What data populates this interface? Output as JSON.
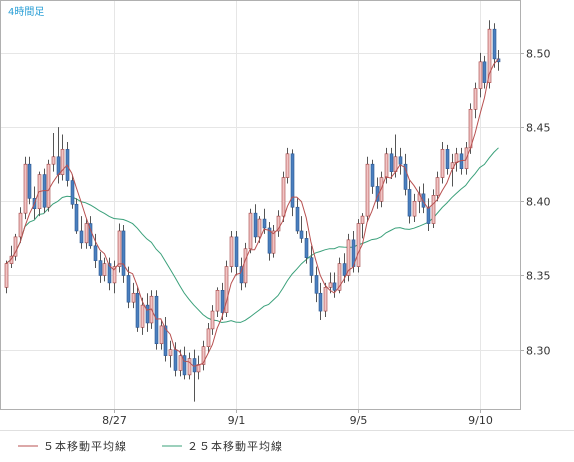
{
  "chart_data": {
    "type": "candlestick",
    "timeframe_label": "4時間足",
    "title": "",
    "xlabel": "",
    "ylabel": "",
    "ylim": [
      8.26,
      8.535
    ],
    "yticks": [
      8.3,
      8.35,
      8.4,
      8.45,
      8.5
    ],
    "ytick_labels": [
      "8.30",
      "8.35",
      "8.40",
      "8.45",
      "8.50"
    ],
    "xticks": [
      {
        "label": "8/27",
        "index": 23
      },
      {
        "label": "9/1",
        "index": 49
      },
      {
        "label": "9/5",
        "index": 75
      },
      {
        "label": "9/10",
        "index": 101
      }
    ],
    "grid": true,
    "up_color": "#f2c4c4",
    "up_edge": "#a04040",
    "down_color": "#4a7fbf",
    "down_edge": "#2a5590",
    "wick_color": "#555555",
    "candles": [
      [
        8.342,
        8.36,
        8.338,
        8.358
      ],
      [
        8.358,
        8.37,
        8.355,
        8.363
      ],
      [
        8.363,
        8.378,
        8.36,
        8.376
      ],
      [
        8.376,
        8.396,
        8.372,
        8.392
      ],
      [
        8.392,
        8.43,
        8.388,
        8.425
      ],
      [
        8.425,
        8.43,
        8.398,
        8.402
      ],
      [
        8.402,
        8.41,
        8.388,
        8.395
      ],
      [
        8.395,
        8.42,
        8.39,
        8.418
      ],
      [
        8.418,
        8.422,
        8.392,
        8.396
      ],
      [
        8.396,
        8.428,
        8.393,
        8.425
      ],
      [
        8.425,
        8.446,
        8.42,
        8.43
      ],
      [
        8.43,
        8.45,
        8.412,
        8.418
      ],
      [
        8.418,
        8.445,
        8.414,
        8.435
      ],
      [
        8.435,
        8.44,
        8.41,
        8.414
      ],
      [
        8.414,
        8.418,
        8.395,
        8.398
      ],
      [
        8.398,
        8.402,
        8.378,
        8.38
      ],
      [
        8.38,
        8.39,
        8.368,
        8.372
      ],
      [
        8.372,
        8.388,
        8.368,
        8.385
      ],
      [
        8.385,
        8.39,
        8.368,
        8.37
      ],
      [
        8.37,
        8.378,
        8.355,
        8.36
      ],
      [
        8.36,
        8.366,
        8.345,
        8.35
      ],
      [
        8.35,
        8.362,
        8.346,
        8.358
      ],
      [
        8.358,
        8.362,
        8.34,
        8.345
      ],
      [
        8.345,
        8.36,
        8.338,
        8.356
      ],
      [
        8.356,
        8.385,
        8.352,
        8.38
      ],
      [
        8.38,
        8.384,
        8.345,
        8.35
      ],
      [
        8.35,
        8.356,
        8.328,
        8.332
      ],
      [
        8.332,
        8.345,
        8.328,
        8.338
      ],
      [
        8.338,
        8.342,
        8.312,
        8.315
      ],
      [
        8.315,
        8.335,
        8.31,
        8.33
      ],
      [
        8.33,
        8.338,
        8.312,
        8.318
      ],
      [
        8.318,
        8.34,
        8.314,
        8.336
      ],
      [
        8.336,
        8.34,
        8.3,
        8.304
      ],
      [
        8.304,
        8.32,
        8.3,
        8.316
      ],
      [
        8.316,
        8.322,
        8.292,
        8.296
      ],
      [
        8.296,
        8.306,
        8.288,
        8.3
      ],
      [
        8.3,
        8.305,
        8.282,
        8.286
      ],
      [
        8.286,
        8.3,
        8.282,
        8.296
      ],
      [
        8.296,
        8.302,
        8.28,
        8.283
      ],
      [
        8.283,
        8.298,
        8.28,
        8.294
      ],
      [
        8.294,
        8.3,
        8.265,
        8.285
      ],
      [
        8.285,
        8.296,
        8.28,
        8.29
      ],
      [
        8.29,
        8.306,
        8.286,
        8.302
      ],
      [
        8.302,
        8.318,
        8.298,
        8.314
      ],
      [
        8.314,
        8.33,
        8.31,
        8.326
      ],
      [
        8.326,
        8.342,
        8.322,
        8.34
      ],
      [
        8.34,
        8.345,
        8.32,
        8.325
      ],
      [
        8.325,
        8.36,
        8.322,
        8.356
      ],
      [
        8.356,
        8.38,
        8.352,
        8.376
      ],
      [
        8.376,
        8.38,
        8.35,
        8.356
      ],
      [
        8.356,
        8.362,
        8.34,
        8.345
      ],
      [
        8.345,
        8.372,
        8.342,
        8.368
      ],
      [
        8.368,
        8.395,
        8.365,
        8.392
      ],
      [
        8.392,
        8.398,
        8.372,
        8.376
      ],
      [
        8.376,
        8.39,
        8.372,
        8.388
      ],
      [
        8.388,
        8.395,
        8.378,
        8.382
      ],
      [
        8.382,
        8.386,
        8.36,
        8.365
      ],
      [
        8.365,
        8.384,
        8.362,
        8.38
      ],
      [
        8.38,
        8.394,
        8.376,
        8.39
      ],
      [
        8.39,
        8.42,
        8.386,
        8.416
      ],
      [
        8.416,
        8.436,
        8.412,
        8.432
      ],
      [
        8.432,
        8.435,
        8.39,
        8.396
      ],
      [
        8.396,
        8.402,
        8.378,
        8.38
      ],
      [
        8.38,
        8.39,
        8.372,
        8.375
      ],
      [
        8.375,
        8.38,
        8.358,
        8.362
      ],
      [
        8.362,
        8.37,
        8.345,
        8.35
      ],
      [
        8.35,
        8.356,
        8.332,
        8.338
      ],
      [
        8.338,
        8.345,
        8.32,
        8.326
      ],
      [
        8.326,
        8.345,
        8.322,
        8.342
      ],
      [
        8.342,
        8.352,
        8.338,
        8.345
      ],
      [
        8.345,
        8.352,
        8.335,
        8.34
      ],
      [
        8.34,
        8.362,
        8.338,
        8.358
      ],
      [
        8.358,
        8.365,
        8.345,
        8.35
      ],
      [
        8.35,
        8.378,
        8.346,
        8.374
      ],
      [
        8.374,
        8.38,
        8.352,
        8.356
      ],
      [
        8.356,
        8.388,
        8.352,
        8.385
      ],
      [
        8.385,
        8.392,
        8.375,
        8.39
      ],
      [
        8.39,
        8.43,
        8.386,
        8.425
      ],
      [
        8.425,
        8.428,
        8.405,
        8.41
      ],
      [
        8.41,
        8.416,
        8.395,
        8.4
      ],
      [
        8.4,
        8.42,
        8.396,
        8.416
      ],
      [
        8.416,
        8.436,
        8.412,
        8.432
      ],
      [
        8.432,
        8.436,
        8.415,
        8.42
      ],
      [
        8.42,
        8.445,
        8.416,
        8.43
      ],
      [
        8.43,
        8.436,
        8.418,
        8.425
      ],
      [
        8.425,
        8.432,
        8.404,
        8.408
      ],
      [
        8.408,
        8.414,
        8.385,
        8.39
      ],
      [
        8.39,
        8.405,
        8.386,
        8.4
      ],
      [
        8.4,
        8.41,
        8.392,
        8.405
      ],
      [
        8.405,
        8.412,
        8.392,
        8.396
      ],
      [
        8.396,
        8.402,
        8.38,
        8.385
      ],
      [
        8.385,
        8.408,
        8.382,
        8.404
      ],
      [
        8.404,
        8.42,
        8.4,
        8.416
      ],
      [
        8.416,
        8.44,
        8.412,
        8.435
      ],
      [
        8.435,
        8.438,
        8.418,
        8.422
      ],
      [
        8.422,
        8.432,
        8.41,
        8.426
      ],
      [
        8.426,
        8.436,
        8.42,
        8.432
      ],
      [
        8.432,
        8.436,
        8.418,
        8.422
      ],
      [
        8.422,
        8.44,
        8.418,
        8.436
      ],
      [
        8.436,
        8.466,
        8.432,
        8.462
      ],
      [
        8.462,
        8.48,
        8.456,
        8.476
      ],
      [
        8.476,
        8.5,
        8.47,
        8.494
      ],
      [
        8.494,
        8.498,
        8.476,
        8.48
      ],
      [
        8.48,
        8.522,
        8.476,
        8.516
      ],
      [
        8.516,
        8.52,
        8.49,
        8.496
      ],
      [
        8.496,
        8.502,
        8.488,
        8.494
      ]
    ],
    "series": [
      {
        "name": "５本移動平均線",
        "type": "line",
        "color": "#b85050",
        "period": 5
      },
      {
        "name": "２５本移動平均線",
        "type": "line",
        "color": "#3aa07a",
        "period": 25
      }
    ]
  },
  "colors": {
    "border": "#b0b0b0",
    "grid": "#e6e6e6",
    "timeframe": "#2a9fd6",
    "ma5": "#b85050",
    "ma25": "#3aa07a"
  }
}
